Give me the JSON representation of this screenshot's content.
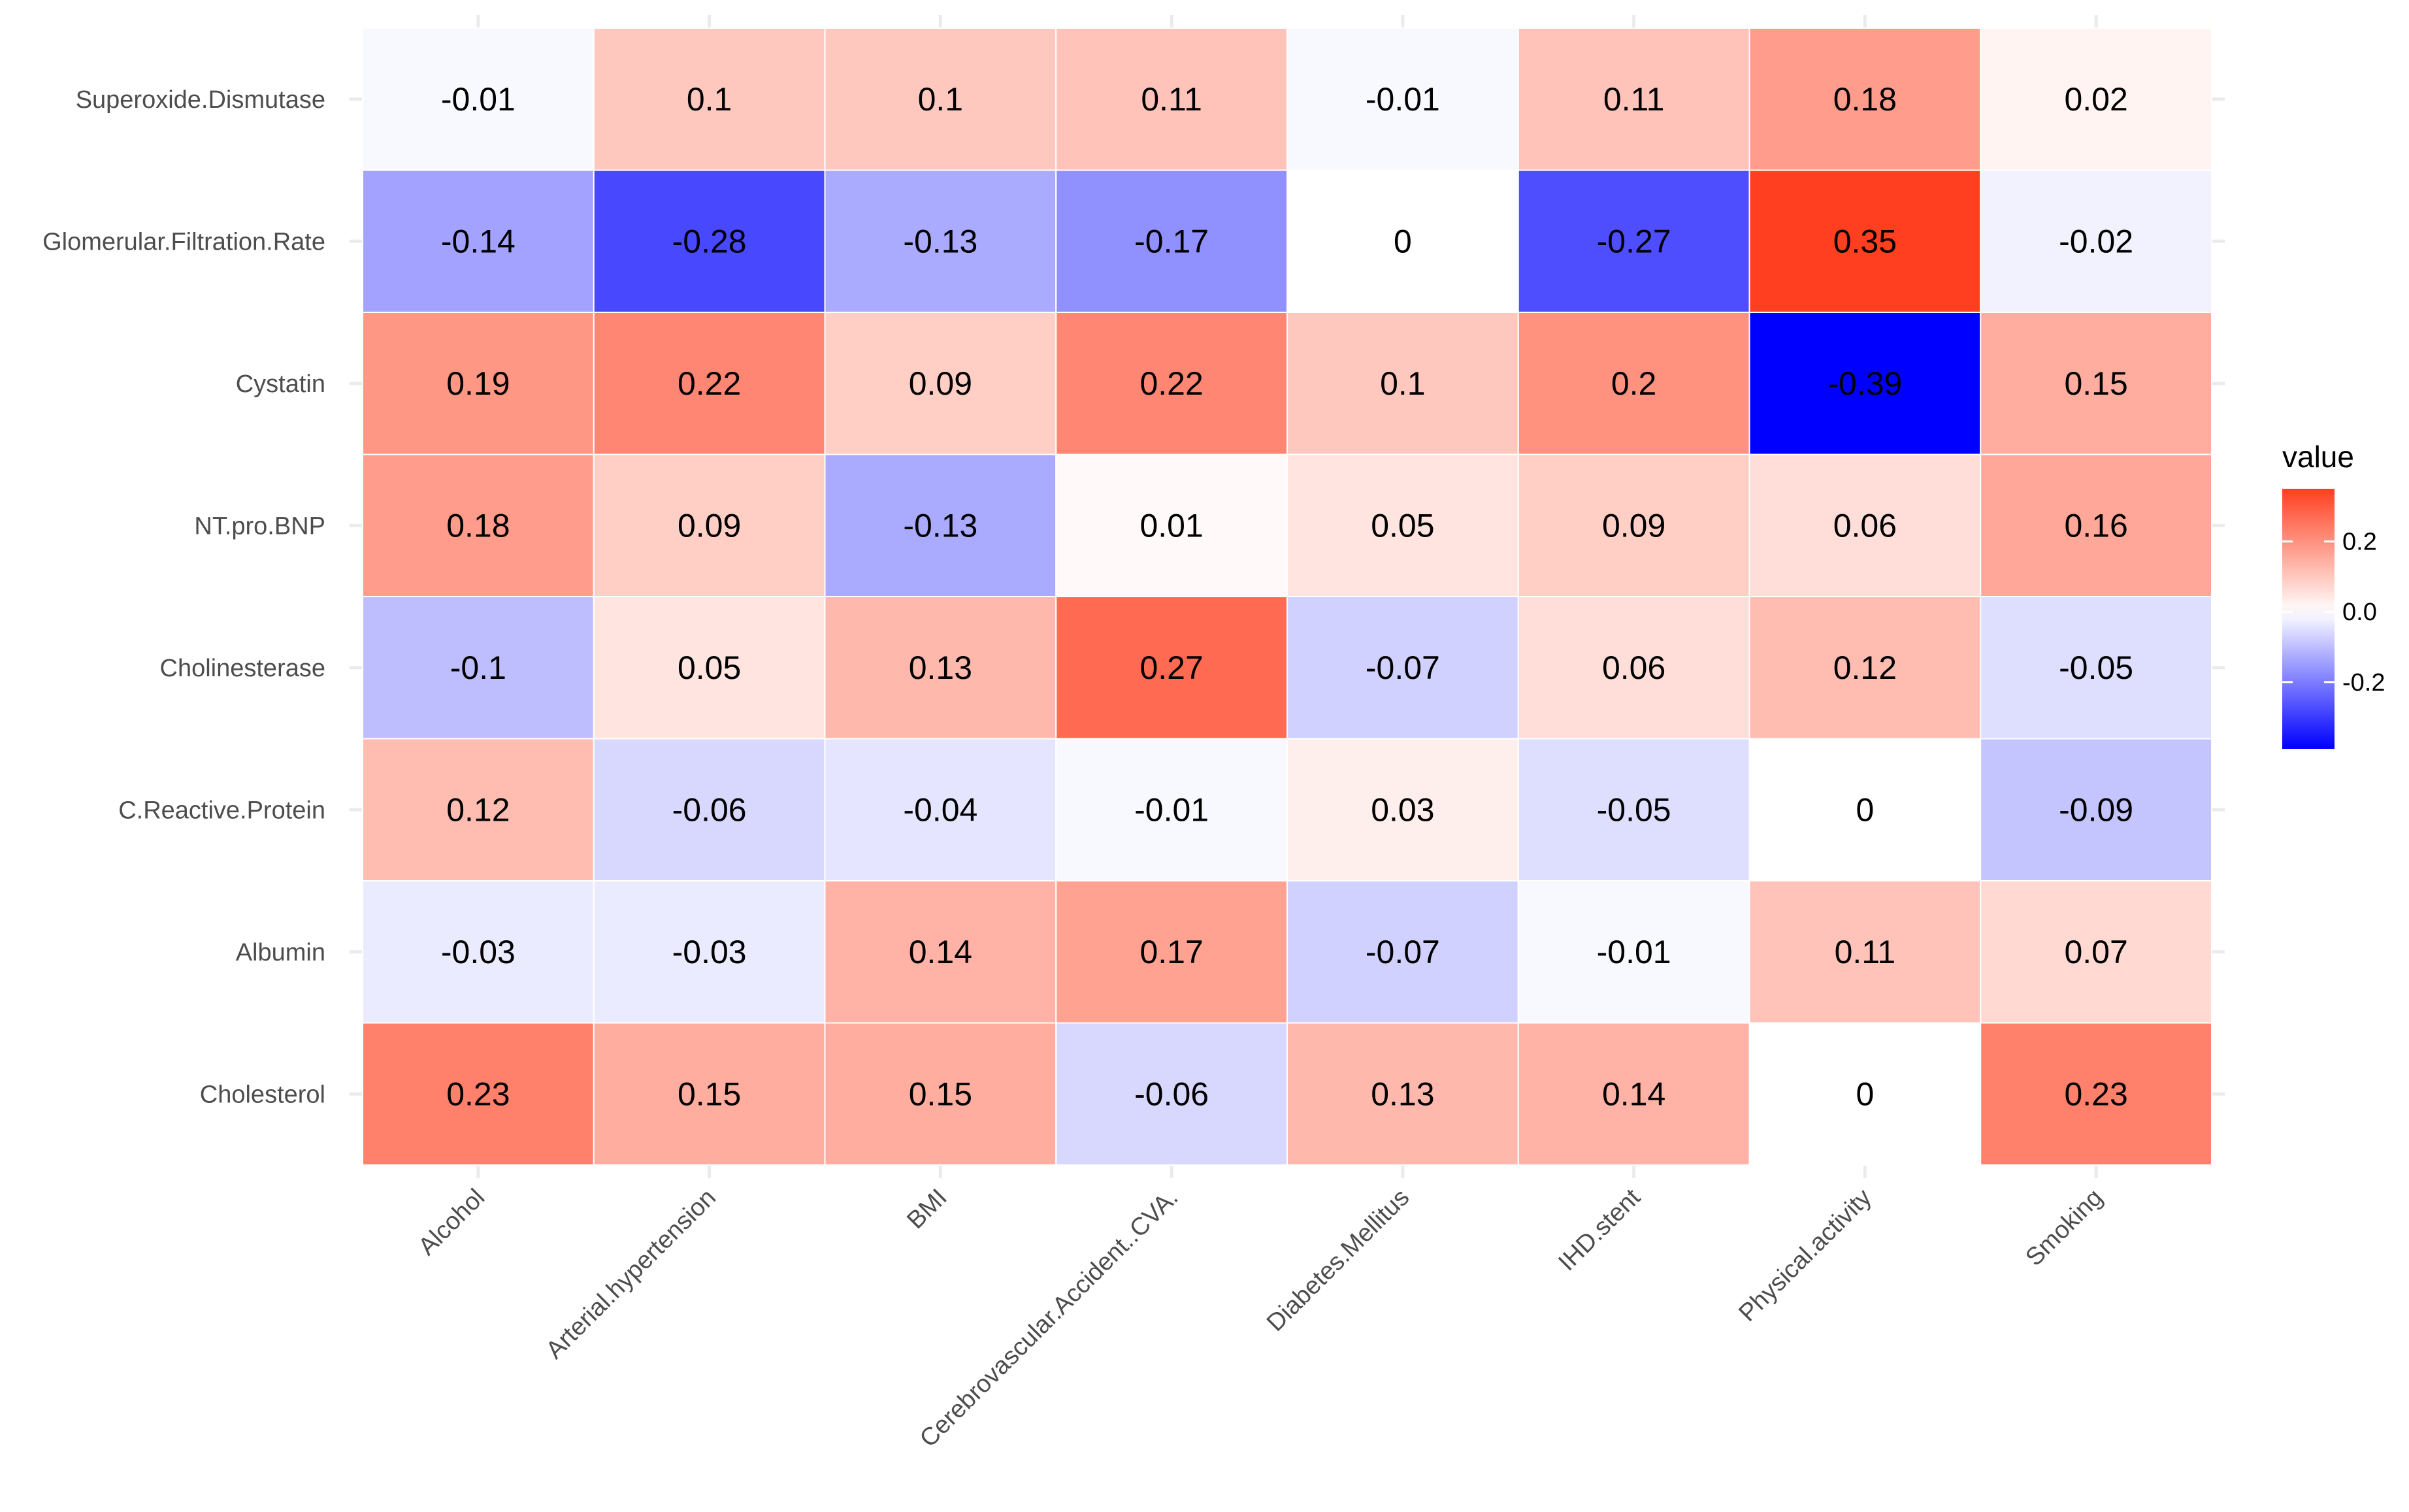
{
  "chart_data": {
    "type": "heatmap",
    "title": "",
    "xlabel": "",
    "ylabel": "",
    "x_categories": [
      "Alcohol",
      "Arterial.hypertension",
      "BMI",
      "Cerebrovascular.Accident..CVA.",
      "Diabetes.Mellitus",
      "IHD.stent",
      "Physical.activity",
      "Smoking"
    ],
    "y_categories": [
      "Superoxide.Dismutase",
      "Glomerular.Filtration.Rate",
      "Cystatin",
      "NT.pro.BNP",
      "Cholinesterase",
      "C.Reactive.Protein",
      "Albumin",
      "Cholesterol"
    ],
    "values": [
      [
        -0.01,
        0.1,
        0.1,
        0.11,
        -0.01,
        0.11,
        0.18,
        0.02
      ],
      [
        -0.14,
        -0.28,
        -0.13,
        -0.17,
        0,
        -0.27,
        0.35,
        -0.02
      ],
      [
        0.19,
        0.22,
        0.09,
        0.22,
        0.1,
        0.2,
        -0.39,
        0.15
      ],
      [
        0.18,
        0.09,
        -0.13,
        0.01,
        0.05,
        0.09,
        0.06,
        0.16
      ],
      [
        -0.1,
        0.05,
        0.13,
        0.27,
        -0.07,
        0.06,
        0.12,
        -0.05
      ],
      [
        0.12,
        -0.06,
        -0.04,
        -0.01,
        0.03,
        -0.05,
        0,
        -0.09
      ],
      [
        -0.03,
        -0.03,
        0.14,
        0.17,
        -0.07,
        -0.01,
        0.11,
        0.07
      ],
      [
        0.23,
        0.15,
        0.15,
        -0.06,
        0.13,
        0.14,
        0,
        0.23
      ]
    ],
    "legend": {
      "title": "value",
      "ticks": [
        0.2,
        0.0,
        -0.2
      ],
      "tick_labels": [
        "0.2",
        "0.0",
        "-0.2"
      ],
      "range": [
        -0.39,
        0.35
      ],
      "position": "right"
    },
    "colors": {
      "low": "#0000ff",
      "mid": "#ffffff",
      "high": "#ff3f1f",
      "grid": "#ebebeb",
      "cell_border": "#ffffff",
      "label_text": "#000000",
      "axis_text": "#4d4d4d"
    }
  }
}
